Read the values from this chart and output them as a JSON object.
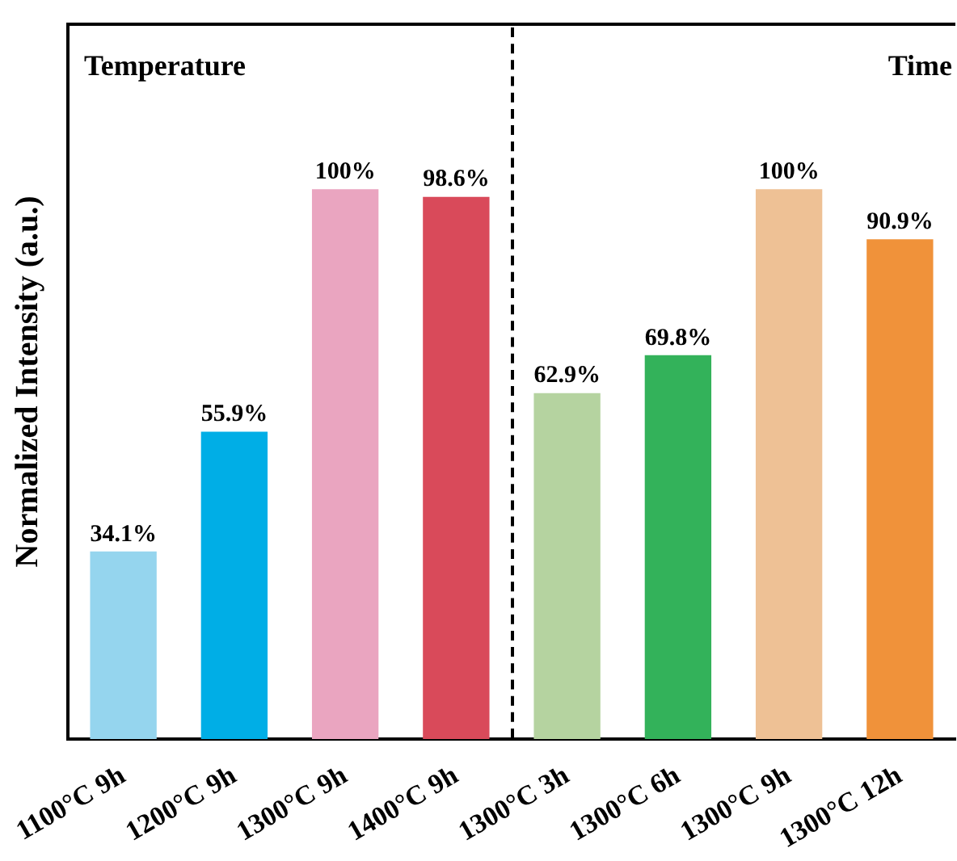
{
  "chart_data": {
    "type": "bar",
    "ylabel": "Normalized Intensity (a.u.)",
    "categories": [
      "1100°C 9h",
      "1200°C 9h",
      "1300°C 9h",
      "1400°C 9h",
      "1300°C 3h",
      "1300°C 6h",
      "1300°C 9h",
      "1300°C 12h"
    ],
    "values": [
      34.1,
      55.9,
      100,
      98.6,
      62.9,
      69.8,
      100,
      90.9
    ],
    "value_labels": [
      "34.1%",
      "55.9%",
      "100%",
      "98.6%",
      "62.9%",
      "69.8%",
      "100%",
      "90.9%"
    ],
    "colors": [
      "#95d5ee",
      "#00aee6",
      "#eaa5c0",
      "#d94a5a",
      "#b5d3a0",
      "#33b25a",
      "#eec195",
      "#f0923a"
    ],
    "ylim": [
      0,
      130
    ],
    "tick_labels": "x",
    "grid": false,
    "legend": false,
    "annotations": [
      "Temperature",
      "Time"
    ]
  }
}
